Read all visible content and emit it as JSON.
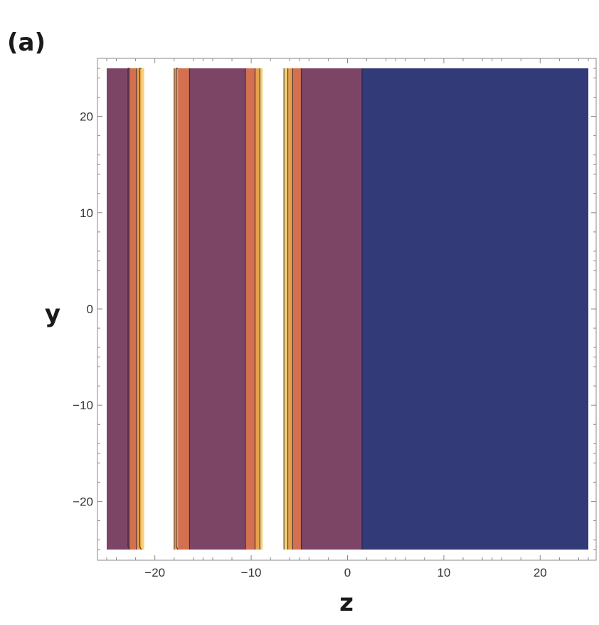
{
  "panel_label": "(a)",
  "chart_data": {
    "type": "contour",
    "xlabel": "z",
    "ylabel": "y",
    "xlim": [
      -25,
      25
    ],
    "ylim": [
      -25,
      25
    ],
    "x_ticks": [
      -20,
      -10,
      0,
      10,
      20
    ],
    "y_ticks": [
      -20,
      -10,
      0,
      10,
      20
    ],
    "x_tick_labels": [
      "−20",
      "−10",
      "0",
      "10",
      "20"
    ],
    "y_tick_labels": [
      "−20",
      "−10",
      "0",
      "10",
      "20"
    ],
    "grid": false,
    "colors": {
      "level_0": "#323a78",
      "level_1": "#7c4566",
      "level_2": "#b3565f",
      "level_3": "#d3704f",
      "level_4": "#e8a24e",
      "level_5": "#f4d27a",
      "max": "#ffffff",
      "contour_line": "#2a1f2a"
    },
    "bands": [
      {
        "z_from": -25.0,
        "z_to": -22.6,
        "level": 1
      },
      {
        "z_from": -22.6,
        "z_to": -21.9,
        "level": 3
      },
      {
        "z_from": -21.9,
        "z_to": -21.4,
        "level": 4
      },
      {
        "z_from": -21.4,
        "z_to": -21.1,
        "level": 5
      },
      {
        "z_from": -21.1,
        "z_to": -18.0,
        "level": 6
      },
      {
        "z_from": -18.0,
        "z_to": -17.6,
        "level": 4
      },
      {
        "z_from": -17.6,
        "z_to": -16.4,
        "level": 3
      },
      {
        "z_from": -16.4,
        "z_to": -10.6,
        "level": 1
      },
      {
        "z_from": -10.6,
        "z_to": -9.6,
        "level": 3
      },
      {
        "z_from": -9.6,
        "z_to": -9.1,
        "level": 4
      },
      {
        "z_from": -9.1,
        "z_to": -8.8,
        "level": 5
      },
      {
        "z_from": -8.8,
        "z_to": -6.6,
        "level": 6
      },
      {
        "z_from": -6.6,
        "z_to": -6.2,
        "level": 5
      },
      {
        "z_from": -6.2,
        "z_to": -5.7,
        "level": 4
      },
      {
        "z_from": -5.7,
        "z_to": -4.8,
        "level": 3
      },
      {
        "z_from": -4.8,
        "z_to": 1.5,
        "level": 1
      },
      {
        "z_from": 1.5,
        "z_to": 25.0,
        "level": 0
      }
    ],
    "contour_lines_z": [
      -22.6,
      -21.9,
      -21.4,
      -18.0,
      -17.6,
      -16.4,
      -10.6,
      -9.6,
      -9.1,
      -6.6,
      -6.2,
      -5.7,
      -4.8,
      1.5
    ],
    "wavy_edges_z": [
      -22.6,
      -21.4,
      -17.6
    ]
  }
}
